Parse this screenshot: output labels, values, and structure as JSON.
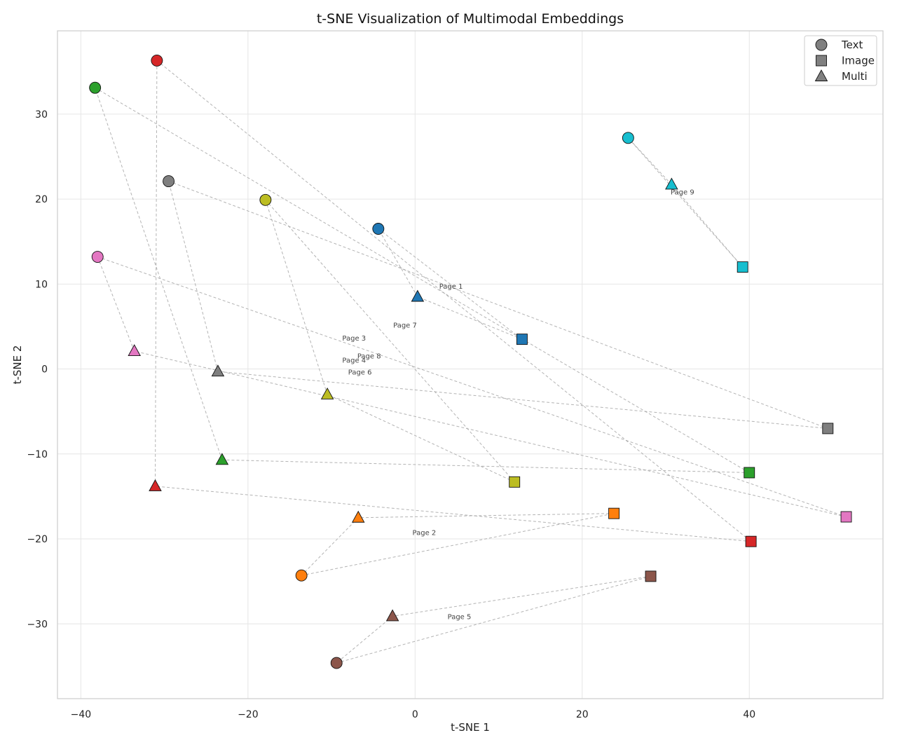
{
  "chart_data": {
    "type": "scatter",
    "title": "t-SNE Visualization of Multimodal Embeddings",
    "xlabel": "t-SNE 1",
    "ylabel": "t-SNE 2",
    "xlim": [
      -42.8,
      56.0
    ],
    "ylim": [
      -38.8,
      39.8
    ],
    "xticks": [
      -40,
      -20,
      0,
      20,
      40
    ],
    "yticks": [
      -30,
      -20,
      -10,
      0,
      10,
      20,
      30
    ],
    "xtick_labels": [
      "−40",
      "−20",
      "0",
      "20",
      "40"
    ],
    "ytick_labels": [
      "−30",
      "−20",
      "−10",
      "0",
      "10",
      "20",
      "30"
    ],
    "grid": true,
    "legend_position": "top-right",
    "legend": [
      {
        "marker": "circle",
        "label": "Text"
      },
      {
        "marker": "square",
        "label": "Image"
      },
      {
        "marker": "triangle",
        "label": "Multi"
      }
    ],
    "groups": [
      {
        "id": 0,
        "color": "#1f77b4",
        "text": [
          -4.4,
          16.5
        ],
        "image": [
          12.8,
          3.5
        ],
        "multi": [
          0.3,
          8.5
        ]
      },
      {
        "id": 1,
        "color": "#ff7f0e",
        "text": [
          -13.6,
          -24.3
        ],
        "image": [
          23.8,
          -17.0
        ],
        "multi": [
          -6.8,
          -17.5
        ]
      },
      {
        "id": 2,
        "color": "#2ca02c",
        "text": [
          -38.3,
          33.1
        ],
        "image": [
          40.0,
          -12.2
        ],
        "multi": [
          -23.1,
          -10.7
        ]
      },
      {
        "id": 3,
        "color": "#d62728",
        "text": [
          -30.9,
          36.3
        ],
        "image": [
          40.2,
          -20.3
        ],
        "multi": [
          -31.1,
          -13.8
        ]
      },
      {
        "id": 4,
        "color": "#8c564b",
        "text": [
          -9.4,
          -34.6
        ],
        "image": [
          28.2,
          -24.4
        ],
        "multi": [
          -2.7,
          -29.1
        ]
      },
      {
        "id": 5,
        "color": "#e377c2",
        "text": [
          -38.0,
          13.2
        ],
        "image": [
          51.6,
          -17.4
        ],
        "multi": [
          -33.6,
          2.1
        ]
      },
      {
        "id": 6,
        "color": "#7f7f7f",
        "text": [
          -29.5,
          22.1
        ],
        "image": [
          49.4,
          -7.0
        ],
        "multi": [
          -23.6,
          -0.3
        ]
      },
      {
        "id": 7,
        "color": "#bcbd22",
        "text": [
          -17.9,
          19.9
        ],
        "image": [
          11.9,
          -13.3
        ],
        "multi": [
          -10.5,
          -3.0
        ]
      },
      {
        "id": 9,
        "color": "#17becf",
        "text": [
          25.5,
          27.2
        ],
        "image": [
          39.2,
          12.0
        ],
        "multi": [
          30.7,
          21.7
        ]
      }
    ],
    "annotations": [
      {
        "text": "Page 1",
        "x": 4.3,
        "y": 9.7
      },
      {
        "text": "Page 2",
        "x": 1.1,
        "y": -19.3
      },
      {
        "text": "Page 3",
        "x": -7.3,
        "y": 3.6
      },
      {
        "text": "Page 4",
        "x": -7.3,
        "y": 1.0
      },
      {
        "text": "Page 5",
        "x": 5.3,
        "y": -29.2
      },
      {
        "text": "Page 6",
        "x": -6.6,
        "y": -0.4
      },
      {
        "text": "Page 7",
        "x": -1.2,
        "y": 5.1
      },
      {
        "text": "Page 8",
        "x": -5.5,
        "y": 1.5
      },
      {
        "text": "Page 9",
        "x": 32.0,
        "y": 20.8
      }
    ]
  }
}
